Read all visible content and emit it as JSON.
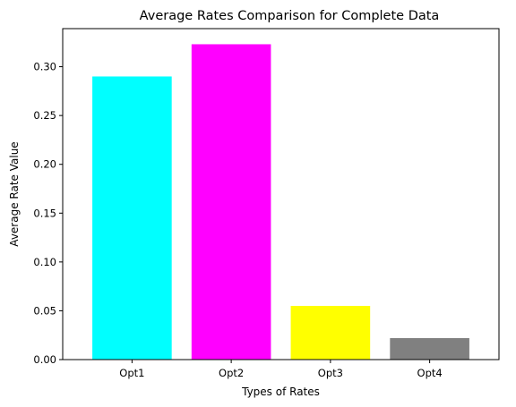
{
  "chart_data": {
    "type": "bar",
    "title": "Average Rates Comparison for Complete Data",
    "xlabel": "Types of Rates",
    "ylabel": "Average Rate Value",
    "categories": [
      "Opt1",
      "Opt2",
      "Opt3",
      "Opt4"
    ],
    "values": [
      0.29,
      0.323,
      0.055,
      0.022
    ],
    "colors": [
      "#00ffff",
      "#ff00ff",
      "#ffff00",
      "#808080"
    ],
    "ylim": [
      0,
      0.339
    ],
    "yticks": [
      0.0,
      0.05,
      0.1,
      0.15,
      0.2,
      0.25,
      0.3
    ],
    "ytick_labels": [
      "0.00",
      "0.05",
      "0.10",
      "0.15",
      "0.20",
      "0.25",
      "0.30"
    ],
    "grid": false,
    "legend": "none"
  }
}
